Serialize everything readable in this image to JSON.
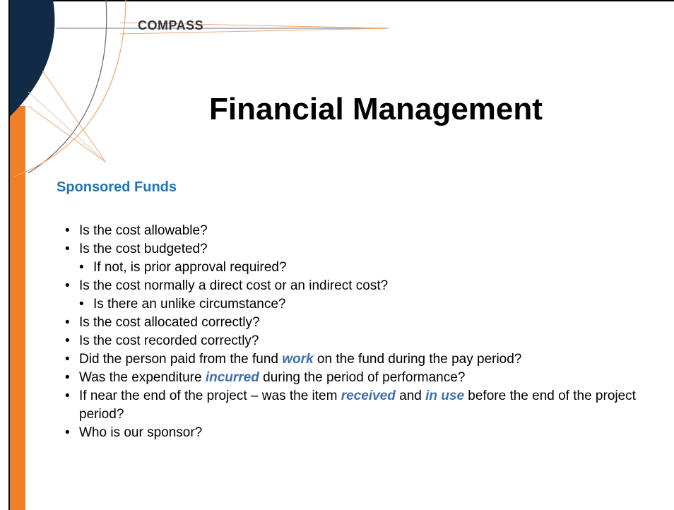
{
  "header": {
    "logo": "COMPASS",
    "title": "Financial Management"
  },
  "section": {
    "heading": "Sponsored Funds"
  },
  "bullets": [
    {
      "segments": [
        {
          "text": "Is the cost allowable?"
        }
      ]
    },
    {
      "segments": [
        {
          "text": "Is the cost budgeted?"
        }
      ],
      "sub": [
        {
          "segments": [
            {
              "text": "If not, is prior approval required?"
            }
          ]
        }
      ]
    },
    {
      "segments": [
        {
          "text": "Is the cost normally a direct cost or an indirect cost?"
        }
      ],
      "sub": [
        {
          "segments": [
            {
              "text": "Is there an unlike circumstance?"
            }
          ]
        }
      ]
    },
    {
      "segments": [
        {
          "text": "Is the cost allocated correctly?"
        }
      ]
    },
    {
      "segments": [
        {
          "text": "Is the cost recorded correctly?"
        }
      ]
    },
    {
      "segments": [
        {
          "text": "Did the person paid from the fund "
        },
        {
          "text": "work",
          "emphasis": true
        },
        {
          "text": " on the fund during the pay period?"
        }
      ]
    },
    {
      "segments": [
        {
          "text": "Was the expenditure "
        },
        {
          "text": "incurred",
          "emphasis": true
        },
        {
          "text": " during the period of performance?"
        }
      ]
    },
    {
      "segments": [
        {
          "text": "If near the end of the project – was the item "
        },
        {
          "text": "received",
          "emphasis": true
        },
        {
          "text": " and "
        },
        {
          "text": "in use",
          "emphasis": true
        },
        {
          "text": " before the end of the project period?"
        }
      ]
    },
    {
      "segments": [
        {
          "text": "Who is our sponsor?"
        }
      ]
    }
  ]
}
